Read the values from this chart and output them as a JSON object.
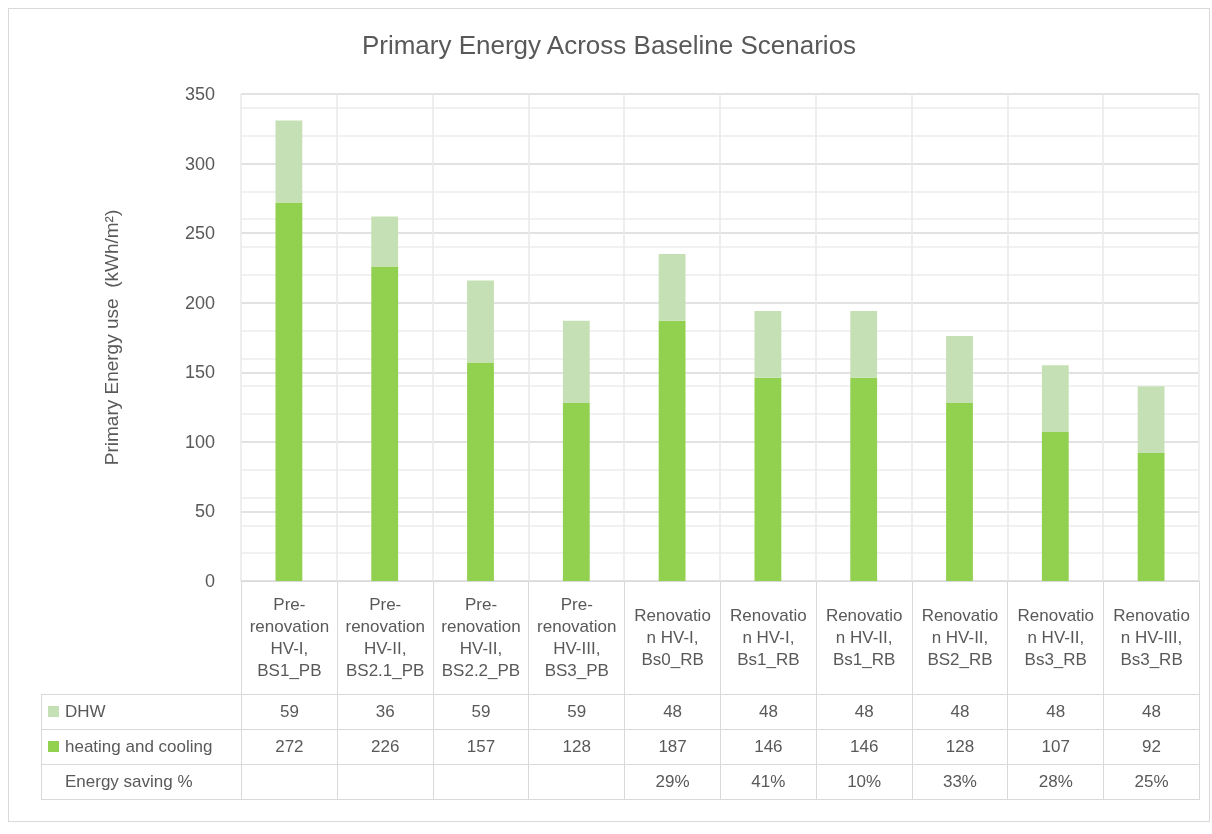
{
  "chart_data": {
    "type": "bar",
    "title": "Primary Energy Across Baseline Scenarios",
    "ylabel": "Primary Energy use  (kWh/m²)",
    "categories": [
      "Pre-renovation HV-I, BS1_PB",
      "Pre-renovation HV-II, BS2.1_PB",
      "Pre-renovation HV-II, BS2.2_PB",
      "Pre-renovation HV-III, BS3_PB",
      "Renovation HV-I, Bs0_RB",
      "Renovation HV-I, Bs1_RB",
      "Renovation HV-II, Bs1_RB",
      "Renovation HV-II, BS2_RB",
      "Renovation HV-II, Bs3_RB",
      "Renovation HV-III, Bs3_RB"
    ],
    "stacked": true,
    "series": [
      {
        "name": "heating and cooling",
        "color": "#92d050",
        "values": [
          272,
          226,
          157,
          128,
          187,
          146,
          146,
          128,
          107,
          92
        ]
      },
      {
        "name": "DHW",
        "color": "#c5e0b4",
        "values": [
          59,
          36,
          59,
          59,
          48,
          48,
          48,
          48,
          48,
          48
        ]
      }
    ],
    "ylim": [
      0,
      350
    ],
    "yticks": [
      0,
      50,
      100,
      150,
      200,
      250,
      300,
      350
    ],
    "grid": true,
    "legend": "bottom",
    "data_labels": true,
    "annotations": [
      "Energy saving %",
      "29%",
      "41%",
      "10%",
      "33%",
      "28%",
      "25%"
    ]
  }
}
